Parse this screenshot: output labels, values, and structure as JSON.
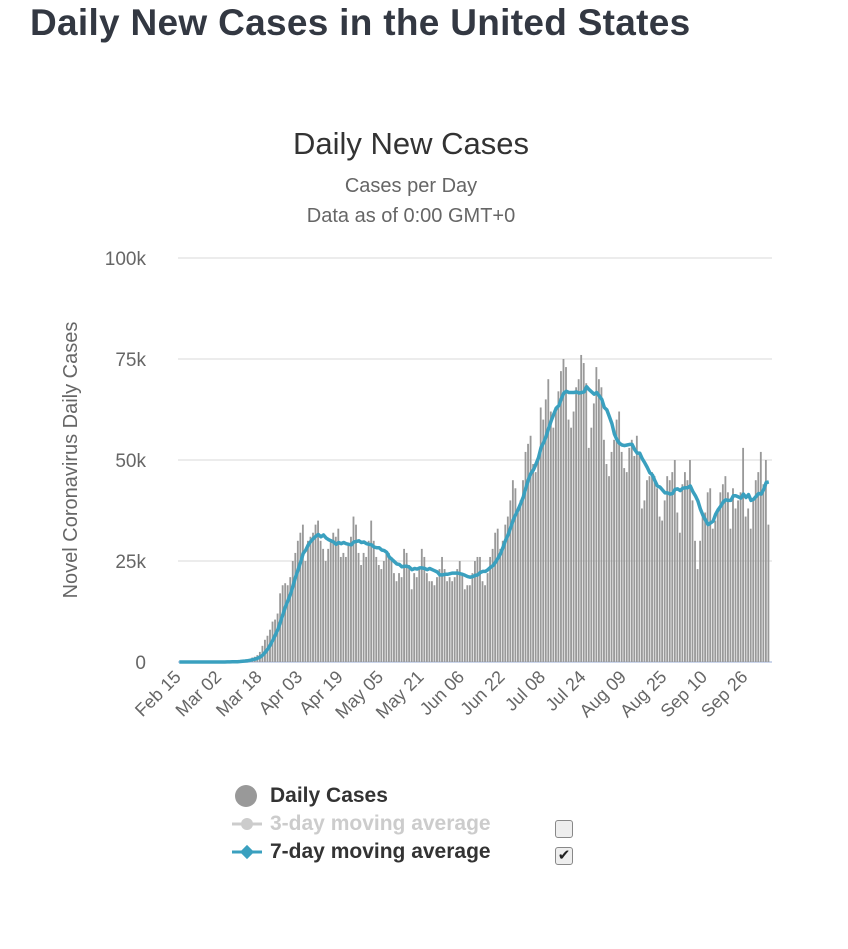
{
  "page_title": "Daily New Cases in the United States",
  "chart_data": {
    "type": "bar",
    "title": "Daily New Cases",
    "subtitle": "Cases per Day",
    "subtitle2": "Data as of 0:00 GMT+0",
    "ylabel": "Novel Coronavirus Daily Cases",
    "xlabel": "",
    "value_unit": "thousands",
    "ylim": [
      0,
      100
    ],
    "yticks": [
      0,
      25,
      50,
      75,
      100
    ],
    "ytick_labels": [
      "0",
      "25k",
      "50k",
      "75k",
      "100k"
    ],
    "start_date": "Feb 15",
    "xtick_labels": [
      "Feb 15",
      "Mar 02",
      "Mar 18",
      "Apr 03",
      "Apr 19",
      "May 05",
      "May 21",
      "Jun 06",
      "Jun 22",
      "Jul 08",
      "Jul 24",
      "Aug 09",
      "Aug 25",
      "Sep 10",
      "Sep 26"
    ],
    "xtick_interval_days": 16,
    "grid": true,
    "series": [
      {
        "name": "Daily Cases",
        "type": "bar",
        "color": "#999999",
        "values": [
          0,
          0,
          0,
          0,
          0,
          0,
          0,
          0,
          0,
          0,
          0,
          0,
          0,
          0,
          0,
          0,
          0,
          0,
          0,
          0.1,
          0.1,
          0.1,
          0.1,
          0.2,
          0.3,
          0.4,
          0.5,
          0.7,
          0.8,
          1.1,
          1.3,
          1.7,
          2.5,
          4,
          5.5,
          6.5,
          8,
          10,
          10.5,
          12,
          17,
          19,
          19.5,
          19,
          21,
          25,
          27,
          30,
          32,
          34,
          25,
          30,
          31,
          32,
          34,
          35,
          30,
          28,
          25,
          28,
          30,
          32,
          31,
          33,
          26,
          27,
          26,
          29,
          31,
          36,
          34,
          27,
          24,
          27,
          26,
          30,
          35,
          30,
          26,
          24,
          23,
          25,
          27,
          27,
          26,
          22,
          20,
          22,
          21,
          28,
          27,
          24,
          18,
          22,
          21,
          23,
          28,
          26,
          22,
          20,
          20,
          19,
          21,
          23,
          26,
          23,
          20,
          21,
          20,
          21,
          23,
          25,
          22,
          18,
          19,
          19,
          22,
          25,
          26,
          26,
          20,
          19,
          22,
          26,
          28,
          32,
          33,
          28,
          30,
          34,
          36,
          40,
          45,
          43,
          37,
          40,
          45,
          52,
          54,
          56,
          49,
          47,
          51,
          63,
          60,
          65,
          70,
          62,
          58,
          62,
          67,
          72,
          75,
          73,
          60,
          58,
          62,
          68,
          70,
          76,
          74,
          69,
          53,
          58,
          64,
          73,
          70,
          68,
          55,
          49,
          46,
          52,
          55,
          60,
          62,
          52,
          48,
          47,
          53,
          55,
          51,
          56,
          52,
          38,
          40,
          45,
          46,
          47,
          46,
          43,
          36,
          35,
          40,
          46,
          45,
          47,
          50,
          37,
          32,
          44,
          47,
          45,
          50,
          40,
          30,
          23,
          30,
          36,
          37,
          42,
          43,
          33,
          35,
          38,
          42,
          44,
          46,
          42,
          33,
          43,
          38,
          40,
          42,
          53,
          36,
          38,
          33,
          40,
          45,
          47,
          52,
          44,
          50,
          34
        ]
      },
      {
        "name": "3-day moving average",
        "type": "line",
        "color": "#cccccc",
        "visible": false
      },
      {
        "name": "7-day moving average",
        "type": "line",
        "color": "#3aa0bf",
        "visible": true,
        "window": 7
      }
    ]
  },
  "legend": {
    "items": [
      "Daily Cases",
      "3-day moving average",
      "7-day moving average"
    ],
    "checkbox_3day": false,
    "checkbox_7day": true,
    "check_glyph": "✔"
  }
}
